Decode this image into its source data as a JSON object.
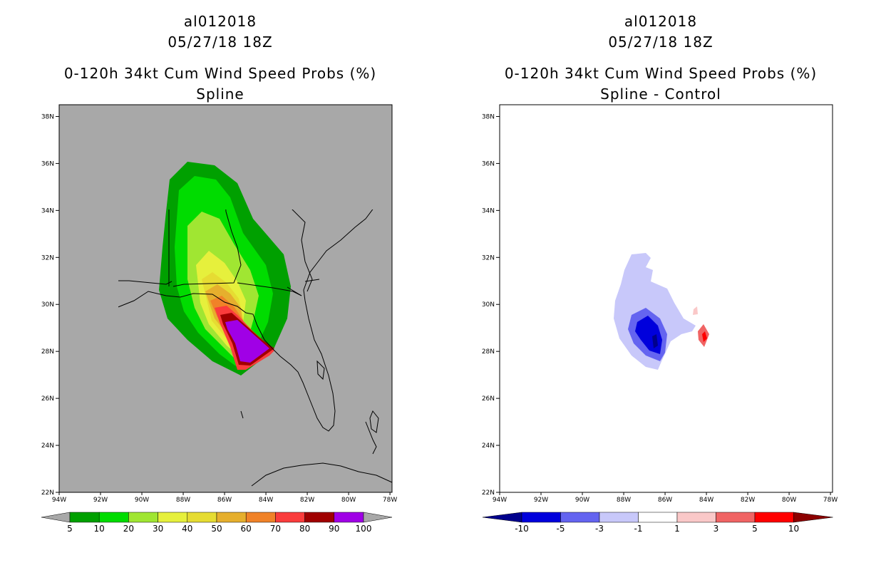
{
  "left_panel": {
    "title_line1": "al012018",
    "title_line2": "05/27/18 18Z",
    "title_line3": "0-120h 34kt Cum Wind Speed Probs (%)",
    "title_line4": "Spline",
    "lat_labels": [
      "38N",
      "36N",
      "34N",
      "32N",
      "30N",
      "28N",
      "26N",
      "24N",
      "22N"
    ],
    "lon_labels": [
      "94W",
      "92W",
      "90W",
      "88W",
      "86W",
      "84W",
      "82W",
      "80W",
      "78W"
    ],
    "background_color": "#a8a8a8",
    "colorbar": {
      "labels": [
        "5",
        "10",
        "20",
        "30",
        "40",
        "50",
        "60",
        "70",
        "80",
        "90",
        "100"
      ],
      "colors": [
        "#00a000",
        "#00dc00",
        "#a0e632",
        "#e6f03c",
        "#e6dc32",
        "#e6af2d",
        "#f08228",
        "#fa3c3c",
        "#a00000",
        "#a000e6"
      ]
    }
  },
  "right_panel": {
    "title_line1": "al012018",
    "title_line2": "05/27/18 18Z",
    "title_line3": "0-120h 34kt Cum Wind Speed Probs (%)",
    "title_line4": "Spline - Control",
    "lat_labels": [
      "38N",
      "36N",
      "34N",
      "32N",
      "30N",
      "28N",
      "26N",
      "24N",
      "22N"
    ],
    "lon_labels": [
      "94W",
      "92W",
      "90W",
      "88W",
      "86W",
      "84W",
      "82W",
      "80W",
      "78W"
    ],
    "background_color": "#ffffff",
    "colorbar": {
      "labels": [
        "-10",
        "-5",
        "-3",
        "-1",
        "1",
        "3",
        "5",
        "10"
      ],
      "colors": [
        "#00008c",
        "#0000dc",
        "#6464f0",
        "#c8c8fa",
        "#ffffff",
        "#fac8c8",
        "#f06464",
        "#ff0000",
        "#8c0000"
      ]
    }
  }
}
